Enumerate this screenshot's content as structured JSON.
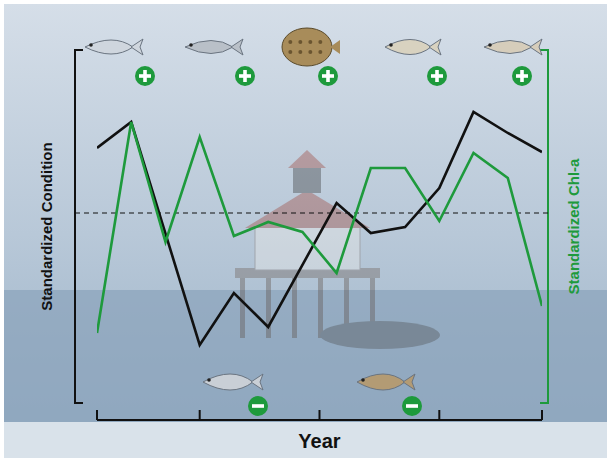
{
  "chart_data": {
    "type": "line",
    "x_label": "Year",
    "y_label": "Standardized Condition",
    "y2_label": "Standardized Chl-a",
    "xlim": [
      0,
      13
    ],
    "xticks": [
      0,
      3,
      6.5,
      10,
      13
    ],
    "ylim": [
      -1.9,
      1.63
    ],
    "yticks": [
      0
    ],
    "y2lim": [
      -1.9,
      1.63
    ],
    "grid": true,
    "tick_labels": false,
    "series": [
      {
        "name": "Standardized Condition",
        "color": "#111111",
        "line_style": "solid",
        "x": [
          0,
          1,
          3,
          4,
          5,
          7,
          8,
          9,
          10,
          11,
          12,
          13
        ],
        "values": [
          0.65,
          0.91,
          -1.32,
          -0.8,
          -1.14,
          0.1,
          -0.2,
          -0.14,
          0.25,
          1.01,
          0.8,
          0.61
        ]
      },
      {
        "name": "Standardized Chl-a",
        "color": "#1e9a3c",
        "line_style": "solid",
        "axis": "y2",
        "x": [
          0,
          1,
          2,
          3,
          4,
          5,
          6,
          7,
          8,
          9,
          10,
          11,
          12,
          13
        ],
        "values": [
          -1.2,
          0.91,
          -0.29,
          0.76,
          -0.23,
          -0.09,
          -0.19,
          -0.6,
          0.45,
          0.45,
          -0.08,
          0.6,
          0.35,
          -0.93
        ]
      }
    ]
  }
}
